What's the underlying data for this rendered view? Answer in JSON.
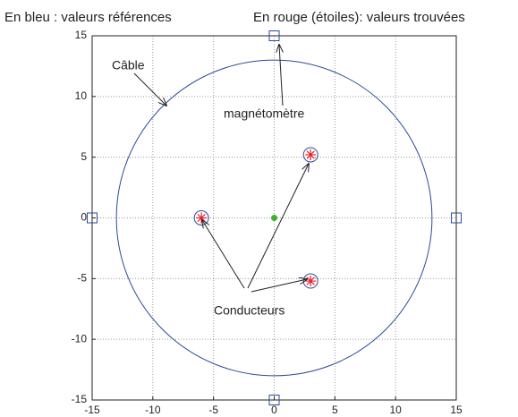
{
  "chart_data": {
    "type": "scatter",
    "titles": [
      "En bleu : valeurs références",
      "En rouge (étoiles): valeurs trouvées"
    ],
    "xlim": [
      -15,
      15
    ],
    "ylim": [
      -15,
      15
    ],
    "xticks": [
      -15,
      -10,
      -5,
      0,
      5,
      10,
      15
    ],
    "yticks": [
      -15,
      -10,
      -5,
      0,
      5,
      10,
      15
    ],
    "grid": true,
    "reference_circle": {
      "radius": 13,
      "color": "#2b4a9a"
    },
    "series": [
      {
        "marker": "square",
        "color": "#2b4a9a",
        "x": [
          0,
          15,
          0,
          -15
        ],
        "y": [
          15,
          0,
          -15,
          0
        ]
      },
      {
        "marker": "circle",
        "color": "#2b4a9a",
        "x": [
          -6,
          3,
          3
        ],
        "y": [
          0,
          5.2,
          -5.2
        ]
      },
      {
        "marker": "star",
        "color": "#e8202a",
        "x": [
          -6,
          3,
          3
        ],
        "y": [
          0,
          5.2,
          -5.2
        ]
      },
      {
        "marker": "dot",
        "color": "#3cb030",
        "x": [
          0
        ],
        "y": [
          0
        ]
      }
    ],
    "annotations": [
      "Câble",
      "magnétomètre",
      "Conducteurs"
    ]
  }
}
